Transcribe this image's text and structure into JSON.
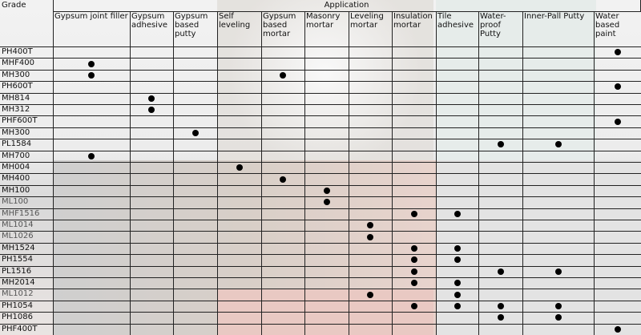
{
  "header": {
    "grade": "Grade",
    "application": "Application",
    "columns": [
      "Gypsum joint filler",
      "Gypsum adhesive",
      "Gypsum based putty",
      "Self leveling",
      "Gypsum based mortar",
      "Masonry mortar",
      "Leveling mortar",
      "Insulation mortar",
      "Tile adhesive",
      "Water-proof Putty",
      "Inner-Pall Putty",
      "Water based paint"
    ]
  },
  "table": {
    "rows": [
      {
        "grade": "PH400T",
        "dots": [
          11
        ]
      },
      {
        "grade": "MHF400",
        "dots": [
          0
        ]
      },
      {
        "grade": "MH300",
        "dots": [
          0,
          4
        ]
      },
      {
        "grade": "PH600T",
        "dots": [
          11
        ]
      },
      {
        "grade": "MH814",
        "dots": [
          1
        ]
      },
      {
        "grade": "MH312",
        "dots": [
          1
        ]
      },
      {
        "grade": "PHF600T",
        "dots": [
          11
        ]
      },
      {
        "grade": "MH300",
        "dots": [
          2
        ]
      },
      {
        "grade": "PL1584",
        "dots": [
          9,
          10
        ]
      },
      {
        "grade": "MH700",
        "dots": [
          0
        ]
      },
      {
        "grade": "MH004",
        "dots": [
          3
        ]
      },
      {
        "grade": "MH400",
        "dots": [
          4
        ]
      },
      {
        "grade": "MH100",
        "dots": [
          5
        ]
      },
      {
        "grade": "ML100",
        "dots": [
          5
        ]
      },
      {
        "grade": "MHF1516",
        "dots": [
          7,
          8
        ]
      },
      {
        "grade": "ML1014",
        "dots": [
          6
        ]
      },
      {
        "grade": "ML1026",
        "dots": [
          6
        ]
      },
      {
        "grade": "MH1524",
        "dots": [
          7,
          8
        ]
      },
      {
        "grade": "PH1554",
        "dots": [
          7,
          8
        ]
      },
      {
        "grade": "PL1516",
        "dots": [
          7,
          9,
          10
        ]
      },
      {
        "grade": "MH2014",
        "dots": [
          7,
          8
        ]
      },
      {
        "grade": "ML1012",
        "dots": [
          6,
          8
        ]
      },
      {
        "grade": "PH1054",
        "dots": [
          7,
          8,
          9,
          10
        ]
      },
      {
        "grade": "PH1086",
        "dots": [
          9,
          10
        ]
      },
      {
        "grade": "PHF400T",
        "dots": [
          11
        ]
      }
    ]
  }
}
